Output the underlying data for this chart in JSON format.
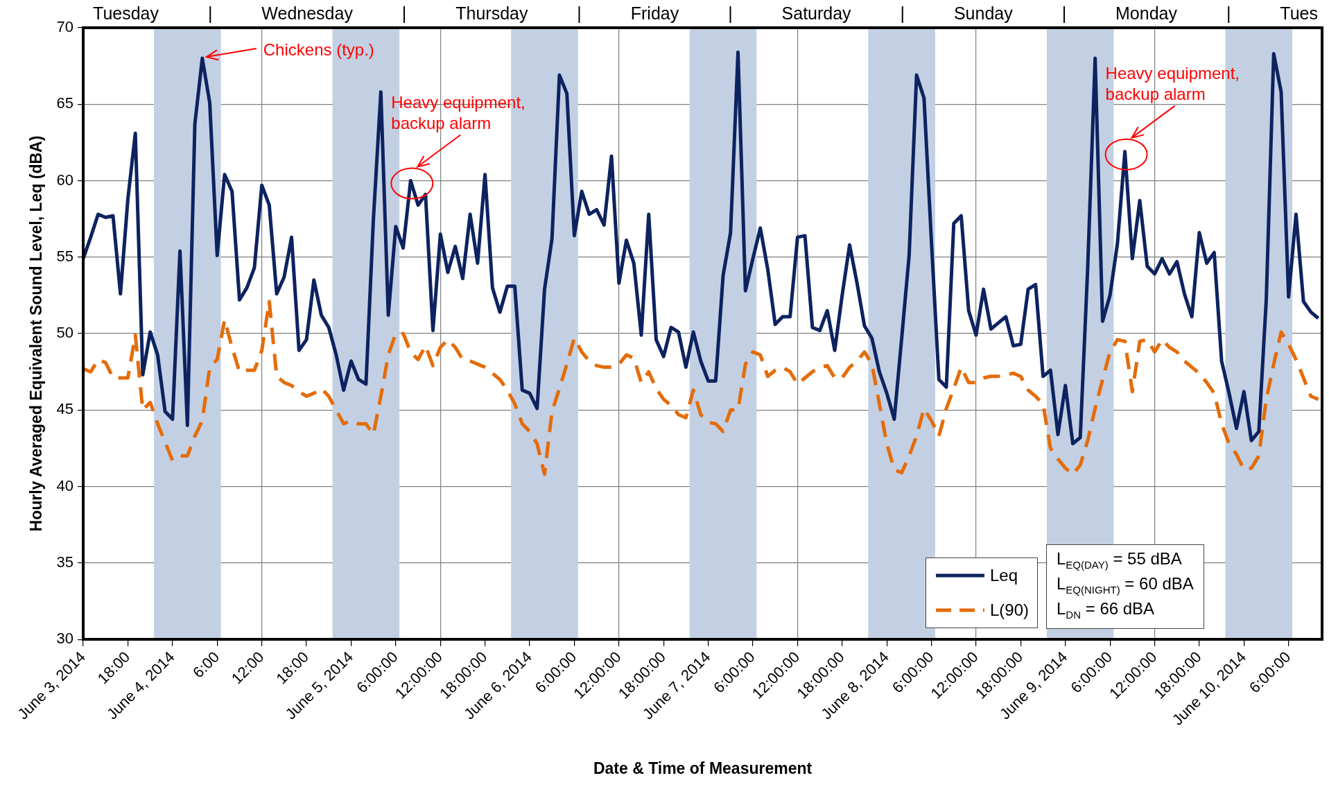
{
  "chart_data": {
    "type": "line",
    "xlabel": "Date & Time of Measurement",
    "ylabel": "Hourly Averaged Equivalent Sound Level, Leq (dBA)",
    "x": [
      "2014-06-03T12:00",
      "2014-06-03T13:00",
      "2014-06-03T14:00",
      "2014-06-03T15:00",
      "2014-06-03T16:00",
      "2014-06-03T17:00",
      "2014-06-03T18:00",
      "2014-06-03T19:00",
      "2014-06-03T20:00",
      "2014-06-03T21:00",
      "2014-06-03T22:00",
      "2014-06-03T23:00",
      "2014-06-04T00:00",
      "2014-06-04T01:00",
      "2014-06-04T02:00",
      "2014-06-04T03:00",
      "2014-06-04T04:00",
      "2014-06-04T05:00",
      "2014-06-04T06:00",
      "2014-06-04T07:00",
      "2014-06-04T08:00",
      "2014-06-04T09:00",
      "2014-06-04T10:00",
      "2014-06-04T11:00",
      "2014-06-04T12:00",
      "2014-06-04T13:00",
      "2014-06-04T14:00",
      "2014-06-04T15:00",
      "2014-06-04T16:00",
      "2014-06-04T17:00",
      "2014-06-04T18:00",
      "2014-06-04T19:00",
      "2014-06-04T20:00",
      "2014-06-04T21:00",
      "2014-06-04T22:00",
      "2014-06-04T23:00",
      "2014-06-05T00:00",
      "2014-06-05T01:00",
      "2014-06-05T02:00",
      "2014-06-05T03:00",
      "2014-06-05T04:00",
      "2014-06-05T05:00",
      "2014-06-05T06:00",
      "2014-06-05T07:00",
      "2014-06-05T08:00",
      "2014-06-05T09:00",
      "2014-06-05T10:00",
      "2014-06-05T11:00",
      "2014-06-05T12:00",
      "2014-06-05T13:00",
      "2014-06-05T14:00",
      "2014-06-05T15:00",
      "2014-06-05T16:00",
      "2014-06-05T17:00",
      "2014-06-05T18:00",
      "2014-06-05T19:00",
      "2014-06-05T20:00",
      "2014-06-05T21:00",
      "2014-06-05T22:00",
      "2014-06-05T23:00",
      "2014-06-06T00:00",
      "2014-06-06T01:00",
      "2014-06-06T02:00",
      "2014-06-06T03:00",
      "2014-06-06T04:00",
      "2014-06-06T05:00",
      "2014-06-06T06:00",
      "2014-06-06T07:00",
      "2014-06-06T08:00",
      "2014-06-06T09:00",
      "2014-06-06T10:00",
      "2014-06-06T11:00",
      "2014-06-06T12:00",
      "2014-06-06T13:00",
      "2014-06-06T14:00",
      "2014-06-06T15:00",
      "2014-06-06T16:00",
      "2014-06-06T17:00",
      "2014-06-06T18:00",
      "2014-06-06T19:00",
      "2014-06-06T20:00",
      "2014-06-06T21:00",
      "2014-06-06T22:00",
      "2014-06-06T23:00",
      "2014-06-07T00:00",
      "2014-06-07T01:00",
      "2014-06-07T02:00",
      "2014-06-07T03:00",
      "2014-06-07T04:00",
      "2014-06-07T05:00",
      "2014-06-07T06:00",
      "2014-06-07T07:00",
      "2014-06-07T08:00",
      "2014-06-07T09:00",
      "2014-06-07T10:00",
      "2014-06-07T11:00",
      "2014-06-07T12:00",
      "2014-06-07T13:00",
      "2014-06-07T14:00",
      "2014-06-07T15:00",
      "2014-06-07T16:00",
      "2014-06-07T17:00",
      "2014-06-07T18:00",
      "2014-06-07T19:00",
      "2014-06-07T20:00",
      "2014-06-07T21:00",
      "2014-06-07T22:00",
      "2014-06-07T23:00",
      "2014-06-08T00:00",
      "2014-06-08T01:00",
      "2014-06-08T02:00",
      "2014-06-08T03:00",
      "2014-06-08T04:00",
      "2014-06-08T05:00",
      "2014-06-08T06:00",
      "2014-06-08T07:00",
      "2014-06-08T08:00",
      "2014-06-08T09:00",
      "2014-06-08T10:00",
      "2014-06-08T11:00",
      "2014-06-08T12:00",
      "2014-06-08T13:00",
      "2014-06-08T14:00",
      "2014-06-08T15:00",
      "2014-06-08T16:00",
      "2014-06-08T17:00",
      "2014-06-08T18:00",
      "2014-06-08T19:00",
      "2014-06-08T20:00",
      "2014-06-08T21:00",
      "2014-06-08T22:00",
      "2014-06-08T23:00",
      "2014-06-09T00:00",
      "2014-06-09T01:00",
      "2014-06-09T02:00",
      "2014-06-09T03:00",
      "2014-06-09T04:00",
      "2014-06-09T05:00",
      "2014-06-09T06:00",
      "2014-06-09T07:00",
      "2014-06-09T08:00",
      "2014-06-09T09:00",
      "2014-06-09T10:00",
      "2014-06-09T11:00",
      "2014-06-09T12:00",
      "2014-06-09T13:00",
      "2014-06-09T14:00",
      "2014-06-09T15:00",
      "2014-06-09T16:00",
      "2014-06-09T17:00",
      "2014-06-09T18:00",
      "2014-06-09T19:00",
      "2014-06-09T20:00",
      "2014-06-09T21:00",
      "2014-06-09T22:00",
      "2014-06-09T23:00",
      "2014-06-10T00:00",
      "2014-06-10T01:00",
      "2014-06-10T02:00",
      "2014-06-10T03:00",
      "2014-06-10T04:00",
      "2014-06-10T05:00",
      "2014-06-10T06:00",
      "2014-06-10T07:00",
      "2014-06-10T08:00",
      "2014-06-10T09:00",
      "2014-06-10T10:00"
    ],
    "series": [
      {
        "name": "Leq",
        "color": "#0d2360",
        "line_style": "solid",
        "values": [
          54.9,
          56.3,
          57.8,
          57.6,
          57.7,
          52.6,
          58.8,
          63.1,
          47.3,
          50.1,
          48.6,
          44.9,
          44.4,
          55.4,
          44.0,
          63.7,
          68.0,
          65.1,
          55.1,
          60.4,
          59.3,
          52.2,
          53.0,
          54.3,
          59.7,
          58.4,
          52.6,
          53.7,
          56.3,
          48.9,
          49.6,
          53.5,
          51.2,
          50.4,
          48.6,
          46.3,
          48.2,
          47.0,
          46.7,
          57.5,
          65.8,
          51.2,
          57.0,
          55.6,
          60.0,
          58.4,
          59.1,
          50.2,
          56.5,
          54.0,
          55.7,
          53.6,
          57.8,
          54.6,
          60.4,
          53.0,
          51.4,
          53.1,
          53.1,
          46.3,
          46.1,
          45.1,
          52.9,
          56.2,
          66.9,
          65.7,
          56.4,
          59.3,
          57.8,
          58.1,
          57.1,
          61.6,
          53.3,
          56.1,
          54.6,
          49.9,
          57.8,
          49.6,
          48.5,
          50.4,
          50.1,
          47.8,
          50.1,
          48.2,
          46.9,
          46.9,
          53.8,
          56.6,
          68.4,
          52.8,
          54.9,
          56.9,
          54.2,
          50.6,
          51.1,
          51.1,
          56.3,
          56.4,
          50.4,
          50.2,
          51.5,
          48.9,
          52.5,
          55.8,
          53.3,
          50.5,
          49.7,
          47.5,
          46.1,
          44.4,
          49.7,
          55.1,
          66.9,
          65.4,
          56.0,
          47.0,
          46.5,
          57.2,
          57.7,
          51.5,
          49.9,
          52.9,
          50.3,
          50.7,
          51.1,
          49.2,
          49.3,
          52.9,
          53.2,
          47.2,
          47.6,
          43.4,
          46.6,
          42.8,
          43.2,
          54.3,
          68.0,
          50.8,
          52.5,
          55.9,
          61.9,
          54.9,
          58.7,
          54.4,
          53.9,
          54.9,
          53.9,
          54.7,
          52.6,
          51.1,
          56.6,
          54.6,
          55.3,
          48.2,
          46.1,
          43.8,
          46.2,
          43.0,
          43.6,
          52.2,
          68.3,
          65.8,
          52.4,
          57.8,
          52.1,
          51.4,
          51.0
        ]
      },
      {
        "name": "L(90)",
        "color": "#e46c0a",
        "line_style": "dashed",
        "values": [
          47.7,
          47.5,
          48.3,
          48.1,
          47.1,
          47.1,
          47.1,
          49.9,
          45.0,
          45.5,
          44.1,
          42.9,
          41.7,
          42.0,
          42.0,
          43.3,
          44.3,
          47.8,
          48.3,
          50.9,
          49.1,
          47.5,
          47.6,
          47.6,
          48.9,
          52.1,
          47.2,
          46.8,
          46.6,
          46.2,
          45.9,
          46.1,
          46.4,
          45.9,
          45.0,
          44.1,
          44.3,
          44.1,
          44.1,
          43.4,
          45.9,
          48.6,
          50.0,
          50.0,
          48.8,
          48.3,
          49.2,
          47.9,
          49.1,
          49.6,
          49.1,
          48.3,
          48.2,
          48.0,
          47.8,
          47.4,
          47.0,
          46.3,
          45.4,
          44.1,
          43.6,
          42.8,
          40.8,
          44.9,
          46.4,
          48.0,
          49.7,
          48.8,
          48.2,
          47.9,
          47.8,
          47.8,
          48.0,
          48.6,
          48.4,
          46.8,
          47.5,
          46.4,
          45.7,
          45.3,
          44.7,
          44.5,
          46.3,
          44.7,
          44.2,
          44.1,
          43.6,
          45.0,
          45.0,
          48.0,
          48.8,
          48.6,
          47.2,
          47.6,
          47.8,
          47.5,
          46.7,
          47.1,
          47.5,
          47.8,
          47.9,
          47.1,
          47.1,
          47.8,
          48.2,
          48.8,
          48.0,
          45.4,
          42.8,
          41.1,
          40.9,
          42.0,
          43.3,
          45.1,
          44.3,
          43.3,
          45.1,
          46.4,
          47.8,
          46.8,
          46.8,
          47.1,
          47.2,
          47.2,
          47.3,
          47.4,
          47.2,
          46.3,
          45.9,
          45.4,
          42.5,
          41.8,
          41.2,
          40.8,
          41.4,
          43.0,
          45.1,
          47.0,
          48.8,
          49.6,
          49.5,
          46.2,
          49.5,
          49.6,
          48.8,
          49.6,
          49.1,
          48.8,
          48.2,
          47.8,
          47.4,
          46.8,
          46.1,
          44.1,
          42.8,
          42.1,
          41.1,
          41.2,
          42.0,
          45.7,
          48.0,
          50.1,
          49.3,
          48.3,
          47.1,
          45.9,
          45.7
        ]
      }
    ],
    "xlim": [
      "2014-06-03T12:00",
      "2014-06-10T10:30"
    ],
    "xticks": [
      {
        "value": "2014-06-03T12:00",
        "label": "June 3, 2014"
      },
      {
        "value": "2014-06-03T18:00",
        "label": "18:00"
      },
      {
        "value": "2014-06-04T00:00",
        "label": "June 4, 2014"
      },
      {
        "value": "2014-06-04T06:00",
        "label": "6:00"
      },
      {
        "value": "2014-06-04T12:00",
        "label": "12:00"
      },
      {
        "value": "2014-06-04T18:00",
        "label": "18:00"
      },
      {
        "value": "2014-06-05T00:00",
        "label": "June 5, 2014"
      },
      {
        "value": "2014-06-05T06:00",
        "label": "6:00:00"
      },
      {
        "value": "2014-06-05T12:00",
        "label": "12:00:00"
      },
      {
        "value": "2014-06-05T18:00",
        "label": "18:00:00"
      },
      {
        "value": "2014-06-06T00:00",
        "label": "June 6, 2014"
      },
      {
        "value": "2014-06-06T06:00",
        "label": "6:00:00"
      },
      {
        "value": "2014-06-06T12:00",
        "label": "12:00:00"
      },
      {
        "value": "2014-06-06T18:00",
        "label": "18:00:00"
      },
      {
        "value": "2014-06-07T00:00",
        "label": "June 7, 2014"
      },
      {
        "value": "2014-06-07T06:00",
        "label": "6:00:00"
      },
      {
        "value": "2014-06-07T12:00",
        "label": "12:00:00"
      },
      {
        "value": "2014-06-07T18:00",
        "label": "18:00:00"
      },
      {
        "value": "2014-06-08T00:00",
        "label": "June 8, 2014"
      },
      {
        "value": "2014-06-08T06:00",
        "label": "6:00:00"
      },
      {
        "value": "2014-06-08T12:00",
        "label": "12:00:00"
      },
      {
        "value": "2014-06-08T18:00",
        "label": "18:00:00"
      },
      {
        "value": "2014-06-09T00:00",
        "label": "June 9, 2014"
      },
      {
        "value": "2014-06-09T06:00",
        "label": "6:00:00"
      },
      {
        "value": "2014-06-09T12:00",
        "label": "12:00:00"
      },
      {
        "value": "2014-06-09T18:00",
        "label": "18:00:00"
      },
      {
        "value": "2014-06-10T00:00",
        "label": "June 10, 2014"
      },
      {
        "value": "2014-06-10T06:00",
        "label": "6:00:00"
      }
    ],
    "ylim": [
      30,
      70
    ],
    "yticks": [
      30,
      35,
      40,
      45,
      50,
      55,
      60,
      65,
      70
    ],
    "grid": true,
    "legend": "bottom right",
    "bands": [
      {
        "axis": "x",
        "from": "2014-06-03T21:30",
        "to": "2014-06-04T06:30",
        "color": "#c3d0e3"
      },
      {
        "axis": "x",
        "from": "2014-06-04T21:30",
        "to": "2014-06-05T06:30",
        "color": "#c3d0e3"
      },
      {
        "axis": "x",
        "from": "2014-06-05T21:30",
        "to": "2014-06-06T06:30",
        "color": "#c3d0e3"
      },
      {
        "axis": "x",
        "from": "2014-06-06T21:30",
        "to": "2014-06-07T06:30",
        "color": "#c3d0e3"
      },
      {
        "axis": "x",
        "from": "2014-06-07T21:30",
        "to": "2014-06-08T06:30",
        "color": "#c3d0e3"
      },
      {
        "axis": "x",
        "from": "2014-06-08T21:30",
        "to": "2014-06-09T06:30",
        "color": "#c3d0e3"
      },
      {
        "axis": "x",
        "from": "2014-06-09T21:30",
        "to": "2014-06-10T06:30",
        "color": "#c3d0e3"
      }
    ],
    "annotations": [
      "Tuesday | Wednesday | Thursday | Friday | Saturday | Sunday | Monday | Tues",
      {
        "text": "Chickens (typ.)",
        "x": "2014-06-04T04:00",
        "y": 68.0
      },
      {
        "text": "Heavy equipment,\nbackup alarm",
        "x": "2014-06-05T08:00",
        "y": 60.0
      },
      {
        "text": "Heavy equipment,\nbackup alarm",
        "x": "2014-06-09T08:00",
        "y": 61.9
      },
      "L$_{EQ(DAY)}$ = 55 dBA",
      "L$_{EQ(NIGHT)}$ = 60 dBA",
      "L$_{DN}$ = 66 dBA"
    ]
  }
}
